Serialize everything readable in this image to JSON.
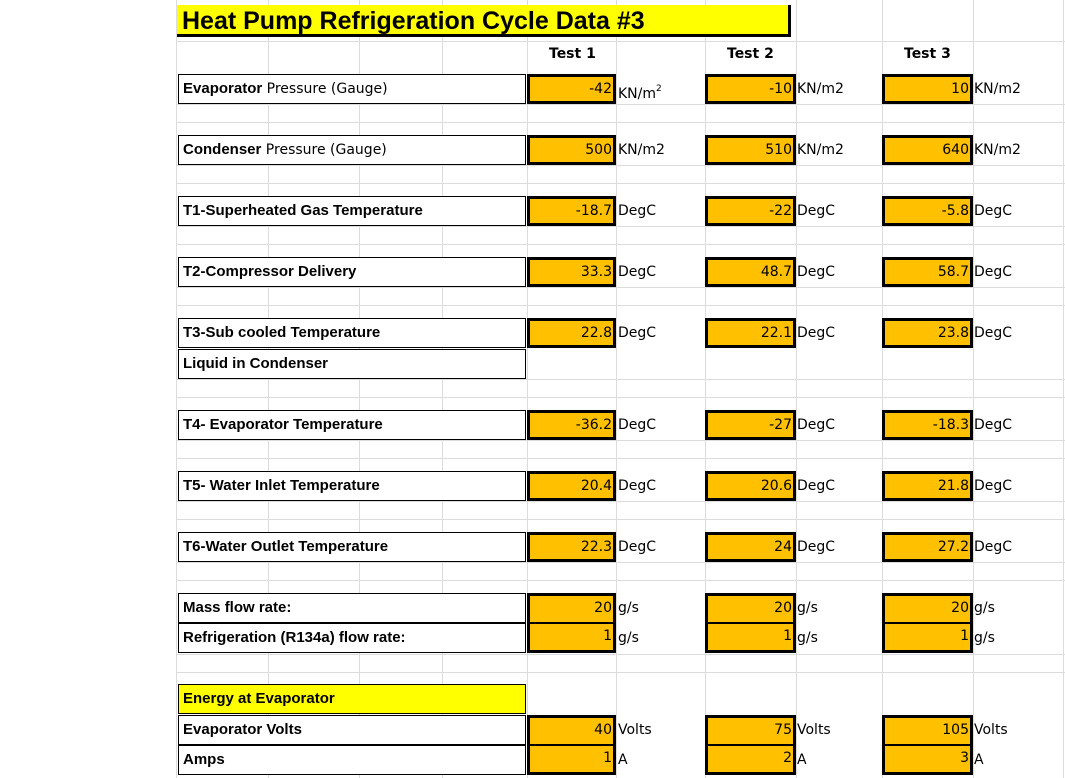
{
  "title": "Heat Pump Refrigeration Cycle Data #3",
  "tests": [
    "Test 1",
    "Test 2",
    "Test 3"
  ],
  "rows": [
    {
      "label_bold": "Evaporator",
      "label_rest": " Pressure (Gauge)",
      "values": [
        "-42",
        "-10",
        "10"
      ],
      "units": [
        "KN/m",
        "KN/m2",
        "KN/m2"
      ]
    },
    {
      "label_bold": "Condenser",
      "label_rest": " Pressure (Gauge)",
      "values": [
        "500",
        "510",
        "640"
      ],
      "units": [
        "KN/m2",
        "KN/m2",
        "KN/m2"
      ]
    },
    {
      "label": "T1-Superheated Gas Temperature",
      "values": [
        "-18.7",
        "-22",
        "-5.8"
      ],
      "units": [
        "DegC",
        "DegC",
        "DegC"
      ]
    },
    {
      "label": "T2-Compressor Delivery",
      "values": [
        "33.3",
        "48.7",
        "58.7"
      ],
      "units": [
        "DegC",
        "DegC",
        "DegC"
      ]
    },
    {
      "label": "T3-Sub cooled Temperature",
      "values": [
        "22.8",
        "22.1",
        "23.8"
      ],
      "units": [
        "DegC",
        "DegC",
        "DegC"
      ]
    },
    {
      "label": "Liquid in Condenser"
    },
    {
      "label": "T4- Evaporator Temperature",
      "values": [
        "-36.2",
        "-27",
        "-18.3"
      ],
      "units": [
        "DegC",
        "DegC",
        "DegC"
      ]
    },
    {
      "label": "T5- Water Inlet Temperature",
      "values": [
        "20.4",
        "20.6",
        "21.8"
      ],
      "units": [
        "DegC",
        "DegC",
        "DegC"
      ]
    },
    {
      "label": "T6-Water Outlet Temperature",
      "values": [
        "22.3",
        "24",
        "27.2"
      ],
      "units": [
        "DegC",
        "DegC",
        "DegC"
      ]
    },
    {
      "label": "Mass flow rate:",
      "values": [
        "20",
        "20",
        "20"
      ],
      "units": [
        "g/s",
        "g/s",
        "g/s"
      ]
    },
    {
      "label": "Refrigeration (R134a) flow rate:",
      "values": [
        "1",
        "1",
        "1"
      ],
      "units": [
        "g/s",
        "g/s",
        "g/s"
      ]
    },
    {
      "label": "Energy at Evaporator",
      "highlight": true
    },
    {
      "label": "Evaporator Volts",
      "values": [
        "40",
        "75",
        "105"
      ],
      "units": [
        "Volts",
        "Volts",
        "Volts"
      ]
    },
    {
      "label": "Amps",
      "values": [
        "1",
        "2",
        "3"
      ],
      "units": [
        "A",
        "A",
        "A"
      ]
    }
  ],
  "evap_unit_superscript": "2",
  "colors": {
    "title_bg": "#ffff00",
    "value_bg": "#ffc000",
    "gridline": "#dcdcdc"
  }
}
